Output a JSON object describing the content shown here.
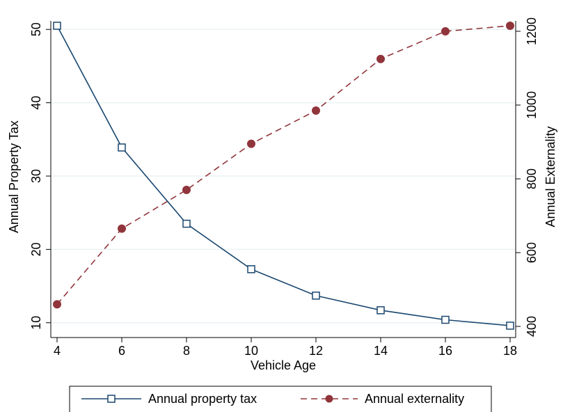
{
  "chart_data": {
    "type": "line",
    "title": "",
    "xlabel": "Vehicle Age",
    "ylabel": "Annual Property Tax",
    "y2label": "Annual Externality",
    "x": [
      4,
      6,
      8,
      10,
      12,
      14,
      16,
      18
    ],
    "xticks": [
      "4",
      "6",
      "8",
      "10",
      "12",
      "14",
      "16",
      "18"
    ],
    "xlim": [
      4,
      18
    ],
    "ylim": [
      9.5,
      50.5
    ],
    "yticks": [
      "10",
      "20",
      "30",
      "40",
      "50"
    ],
    "y2lim": [
      400,
      1215
    ],
    "y2ticks": [
      "400",
      "600",
      "800",
      "1000",
      "1200"
    ],
    "grid": true,
    "legend_position": "bottom",
    "series": [
      {
        "name": "Annual property tax",
        "axis": "left",
        "values": [
          50.5,
          33.9,
          23.5,
          17.3,
          13.7,
          11.7,
          10.4,
          9.6
        ],
        "color": "#1a476f",
        "marker": "hollow-square",
        "line_style": "solid"
      },
      {
        "name": "Annual externality",
        "axis": "right",
        "values": [
          460,
          665,
          770,
          895,
          985,
          1125,
          1200,
          1215
        ],
        "color": "#90353b",
        "marker": "filled-circle",
        "line_style": "dashed"
      }
    ]
  }
}
